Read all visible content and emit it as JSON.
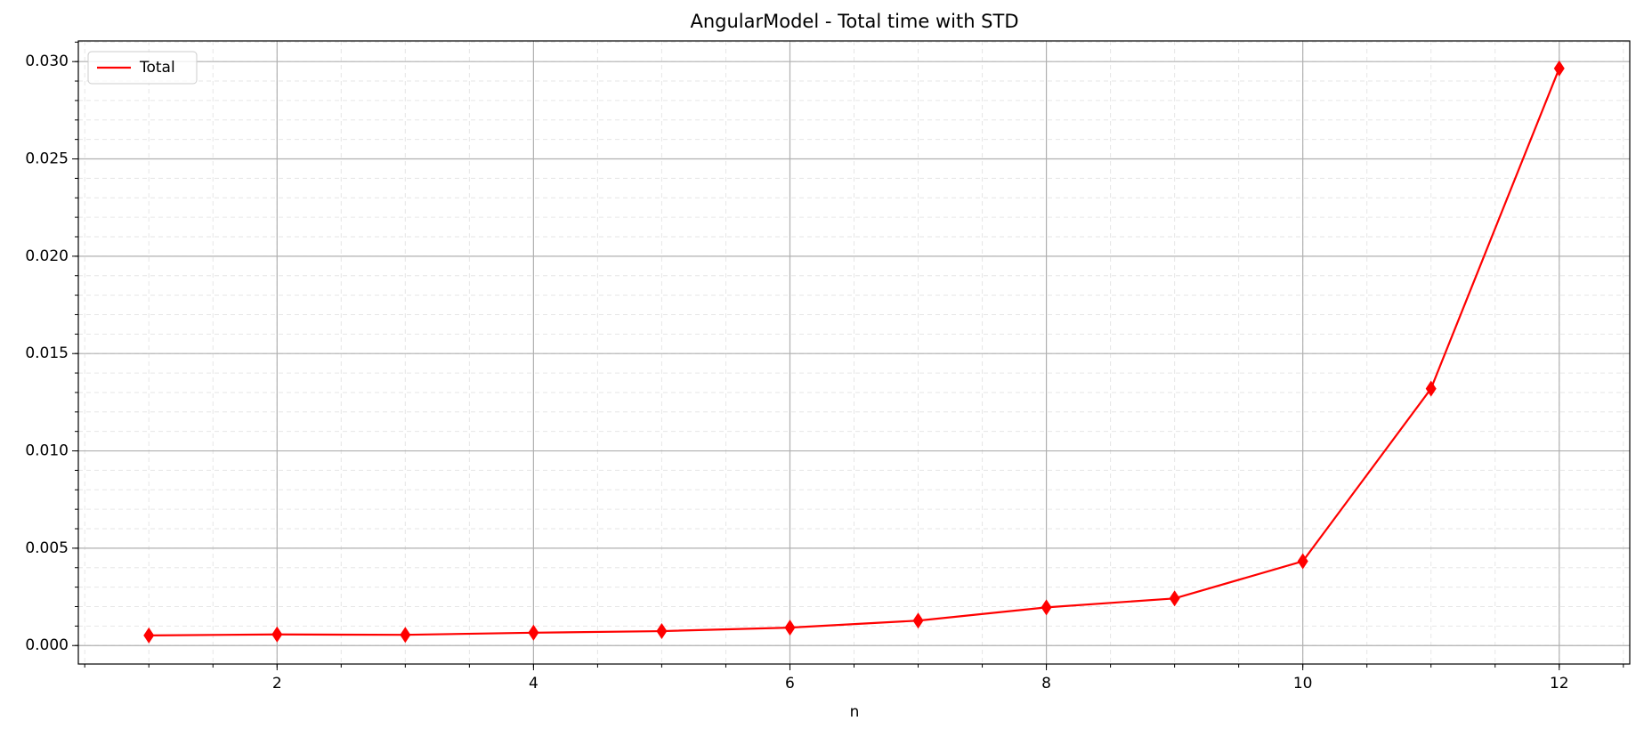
{
  "chart_data": {
    "type": "line",
    "title": "AngularModel - Total time with STD",
    "x_label": "n",
    "x": [
      1,
      2,
      3,
      4,
      5,
      6,
      7,
      8,
      9,
      10,
      11,
      12
    ],
    "series": [
      {
        "name": "Total",
        "color": "#ff0000",
        "marker": "diamond",
        "values": [
          0.00052,
          0.00057,
          0.00055,
          0.00066,
          0.00074,
          0.00092,
          0.00128,
          0.00196,
          0.00242,
          0.00433,
          0.0132,
          0.02965
        ]
      }
    ],
    "xlim": [
      0.45,
      12.55
    ],
    "xticks": [
      2,
      4,
      6,
      8,
      10,
      12
    ],
    "ylim": [
      -0.00095,
      0.03106
    ],
    "yticks": [
      {
        "value": 0,
        "label": "0.000"
      },
      {
        "value": 0.005,
        "label": "0.005"
      },
      {
        "value": 0.01,
        "label": "0.010"
      },
      {
        "value": 0.015,
        "label": "0.015"
      },
      {
        "value": 0.02,
        "label": "0.020"
      },
      {
        "value": 0.025,
        "label": "0.025"
      },
      {
        "value": 0.03,
        "label": "0.030"
      }
    ],
    "grid": true,
    "minor_grid": true,
    "legend": "upper left"
  }
}
